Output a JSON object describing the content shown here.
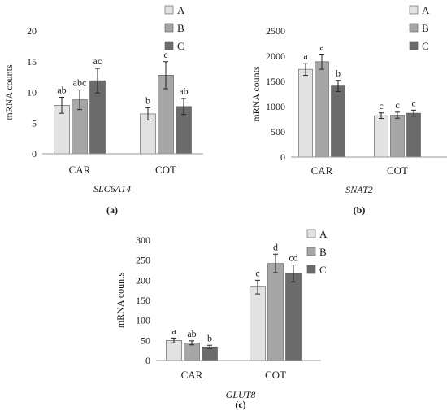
{
  "colors": {
    "A": "#e2e2e2",
    "B": "#a6a6a6",
    "C": "#6b6b6b",
    "stroke": "#555555",
    "axis": "#999999"
  },
  "chart_data": [
    {
      "type": "bar",
      "panel": "(a)",
      "gene": "SLC6A14",
      "ylabel": "mRNA counts",
      "ylim": [
        0,
        20
      ],
      "yticks": [
        0,
        5,
        10,
        15,
        20
      ],
      "categories": [
        "CAR",
        "COT"
      ],
      "legend": [
        "A",
        "B",
        "C"
      ],
      "legend_position": "right",
      "series": [
        {
          "name": "A",
          "values": [
            7.9,
            6.5
          ],
          "errors": [
            1.3,
            1.0
          ],
          "letters": [
            "ab",
            "b"
          ]
        },
        {
          "name": "B",
          "values": [
            8.8,
            12.8
          ],
          "errors": [
            1.6,
            2.2
          ],
          "letters": [
            "abc",
            "c"
          ]
        },
        {
          "name": "C",
          "values": [
            11.9,
            7.7
          ],
          "errors": [
            2.0,
            1.3
          ],
          "letters": [
            "ac",
            "ab"
          ]
        }
      ]
    },
    {
      "type": "bar",
      "panel": "(b)",
      "gene": "SNAT2",
      "ylabel": "mRNA counts",
      "ylim": [
        0,
        2500
      ],
      "yticks": [
        0,
        500,
        1000,
        1500,
        2000,
        2500
      ],
      "categories": [
        "CAR",
        "COT"
      ],
      "legend": [
        "A",
        "B",
        "C"
      ],
      "legend_position": "right",
      "series": [
        {
          "name": "A",
          "values": [
            1740,
            820
          ],
          "errors": [
            120,
            55
          ],
          "letters": [
            "a",
            "c"
          ]
        },
        {
          "name": "B",
          "values": [
            1890,
            830
          ],
          "errors": [
            150,
            60
          ],
          "letters": [
            "a",
            "c"
          ]
        },
        {
          "name": "C",
          "values": [
            1410,
            870
          ],
          "errors": [
            110,
            60
          ],
          "letters": [
            "b",
            "c"
          ]
        }
      ]
    },
    {
      "type": "bar",
      "panel": "(c)",
      "gene": "GLUT8",
      "ylabel": "mRNA counts",
      "ylim": [
        0,
        300
      ],
      "yticks": [
        0,
        50,
        100,
        150,
        200,
        250,
        300
      ],
      "categories": [
        "CAR",
        "COT"
      ],
      "legend": [
        "A",
        "B",
        "C"
      ],
      "legend_position": "right",
      "series": [
        {
          "name": "A",
          "values": [
            50,
            183
          ],
          "errors": [
            6,
            17
          ],
          "letters": [
            "a",
            "c"
          ]
        },
        {
          "name": "B",
          "values": [
            44,
            242
          ],
          "errors": [
            5,
            23
          ],
          "letters": [
            "ab",
            "d"
          ]
        },
        {
          "name": "C",
          "values": [
            34,
            217
          ],
          "errors": [
            4,
            21
          ],
          "letters": [
            "b",
            "cd"
          ]
        }
      ]
    }
  ]
}
